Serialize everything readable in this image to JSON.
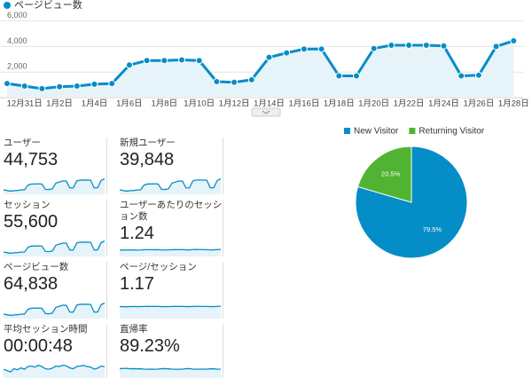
{
  "chart_data": [
    {
      "type": "line",
      "categories": [
        null,
        "12月31日",
        null,
        "1月2日",
        null,
        "1月4日",
        null,
        "1月6日",
        null,
        "1月8日",
        null,
        "1月10日",
        null,
        "1月12日",
        null,
        "1月14日",
        null,
        "1月16日",
        null,
        "1月18日",
        null,
        "1月20日",
        null,
        "1月22日",
        null,
        "1月24日",
        null,
        "1月26日",
        null,
        "1月28日"
      ],
      "series": [
        {
          "name": "ページビュー数",
          "color": "#058dc7",
          "values": [
            1100,
            900,
            700,
            850,
            900,
            1050,
            1100,
            2550,
            2900,
            2900,
            2950,
            2900,
            1250,
            1200,
            1400,
            3150,
            3500,
            3800,
            3800,
            1700,
            1700,
            3850,
            4100,
            4100,
            4100,
            4050,
            1700,
            1750,
            4000,
            4450
          ]
        }
      ],
      "ylim": [
        0,
        6600
      ],
      "yticks": [
        {
          "value": 2000,
          "label": "2,000"
        },
        {
          "value": 4000,
          "label": "4,000"
        },
        {
          "value": 6000,
          "label": "6,000"
        }
      ],
      "grid": true
    },
    {
      "type": "pie",
      "categories": [
        "New Visitor",
        "Returning Visitor"
      ],
      "values": [
        79.5,
        20.5
      ],
      "value_labels": [
        "79.5%",
        "20.5%"
      ],
      "colors": [
        "#058dc7",
        "#50b432"
      ],
      "legend": "top"
    }
  ],
  "metrics": [
    {
      "label": "ユーザー",
      "value": "44,753",
      "sparkline": [
        760,
        620,
        480,
        590,
        620,
        720,
        760,
        1760,
        2000,
        2000,
        2040,
        2000,
        860,
        830,
        970,
        2170,
        2420,
        2620,
        2620,
        1170,
        1170,
        2660,
        2830,
        2830,
        2830,
        2790,
        1170,
        1210,
        2760,
        3070
      ]
    },
    {
      "label": "新規ユーザー",
      "value": "39,848",
      "sparkline": [
        680,
        550,
        430,
        520,
        550,
        640,
        680,
        1570,
        1780,
        1780,
        1820,
        1780,
        770,
        740,
        860,
        1930,
        2150,
        2330,
        2330,
        1040,
        1040,
        2370,
        2520,
        2520,
        2520,
        2480,
        1040,
        1080,
        2460,
        2730
      ]
    },
    {
      "label": "セッション",
      "value": "55,600",
      "sparkline": [
        940,
        770,
        600,
        730,
        770,
        900,
        940,
        2190,
        2490,
        2490,
        2530,
        2490,
        1070,
        1030,
        1200,
        2700,
        3000,
        3260,
        3260,
        1460,
        1460,
        3300,
        3520,
        3520,
        3520,
        3470,
        1460,
        1500,
        3430,
        3820
      ]
    },
    {
      "label": "ユーザーあたりのセッション数",
      "value": "1.24",
      "sparkline": [
        1.2,
        1.22,
        1.2,
        1.21,
        1.22,
        1.2,
        1.21,
        1.24,
        1.25,
        1.25,
        1.24,
        1.25,
        1.22,
        1.21,
        1.22,
        1.25,
        1.26,
        1.25,
        1.26,
        1.23,
        1.22,
        1.26,
        1.27,
        1.26,
        1.26,
        1.25,
        1.22,
        1.23,
        1.26,
        1.27
      ]
    },
    {
      "label": "ページビュー数",
      "value": "64,838",
      "sparkline": [
        1100,
        900,
        700,
        850,
        900,
        1050,
        1100,
        2550,
        2900,
        2900,
        2950,
        2900,
        1250,
        1200,
        1400,
        3150,
        3500,
        3800,
        3800,
        1700,
        1700,
        3850,
        4100,
        4100,
        4100,
        4050,
        1700,
        1750,
        4000,
        4450
      ]
    },
    {
      "label": "ページ/セッション",
      "value": "1.17",
      "sparkline": [
        1.15,
        1.16,
        1.14,
        1.16,
        1.17,
        1.15,
        1.16,
        1.17,
        1.18,
        1.17,
        1.18,
        1.17,
        1.16,
        1.15,
        1.16,
        1.17,
        1.18,
        1.17,
        1.18,
        1.16,
        1.15,
        1.17,
        1.18,
        1.18,
        1.17,
        1.17,
        1.16,
        1.15,
        1.18,
        1.19
      ]
    },
    {
      "label": "平均セッション時間",
      "value": "00:00:48",
      "sparkline": [
        40,
        35,
        30,
        42,
        38,
        45,
        40,
        50,
        52,
        48,
        55,
        50,
        42,
        40,
        44,
        52,
        50,
        55,
        53,
        45,
        42,
        50,
        52,
        54,
        50,
        48,
        40,
        44,
        52,
        50
      ]
    },
    {
      "label": "直帰率",
      "value": "89.23%",
      "sparkline": [
        92,
        93,
        94,
        91,
        92,
        90,
        91,
        88,
        87,
        88,
        87,
        88,
        91,
        92,
        90,
        88,
        87,
        87,
        88,
        91,
        92,
        88,
        87,
        88,
        88,
        88,
        91,
        90,
        88,
        87
      ]
    }
  ]
}
